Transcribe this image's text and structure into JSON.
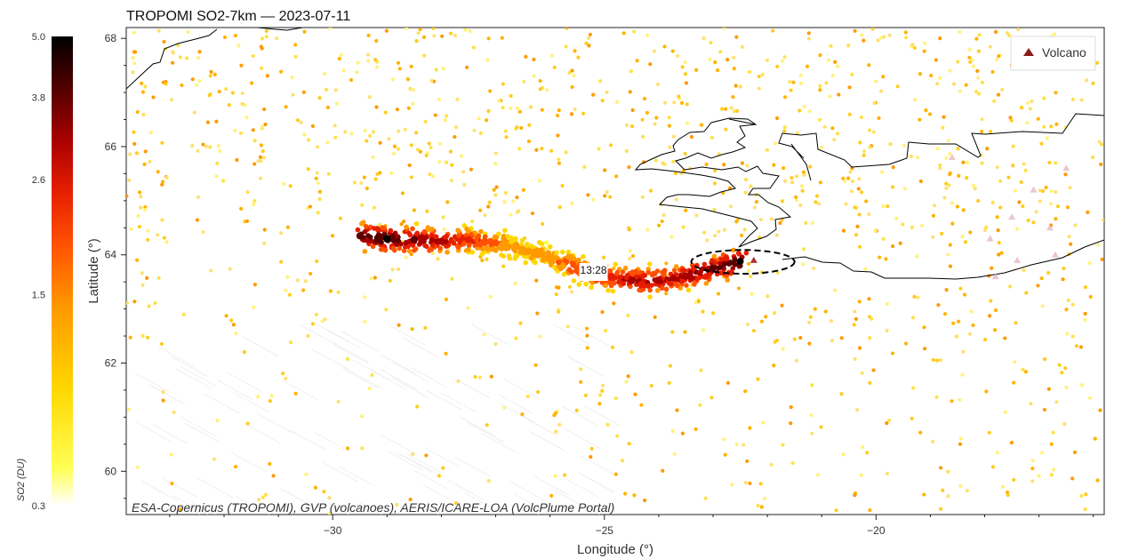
{
  "chart_data": {
    "type": "scatter",
    "title": "TROPOMI SO2-7km — 2023-07-11",
    "xlabel": "Longitude (°)",
    "ylabel": "Latitude (°)",
    "xlim": [
      -33.8,
      -15.8
    ],
    "ylim": [
      59.2,
      68.2
    ],
    "x_ticks": [
      -30,
      -25,
      -20
    ],
    "x_tick_labels": [
      "−30",
      "−25",
      "−20"
    ],
    "y_ticks": [
      60,
      62,
      64,
      66,
      68
    ],
    "y_tick_labels": [
      "60",
      "62",
      "64",
      "66",
      "68"
    ],
    "grid": false,
    "colorbar": {
      "label": "SO2 (DU)",
      "range": [
        0.3,
        5.0
      ],
      "ticks": [
        5.0,
        3.8,
        2.6,
        1.5,
        0.3
      ],
      "tick_labels": [
        "5.0",
        "3.8",
        "2.6",
        "1.5",
        "0.3"
      ],
      "colormap": [
        "#ffffff",
        "#ffff55",
        "#ffd700",
        "#ff9a00",
        "#ff5000",
        "#e61e00",
        "#a80000",
        "#5a0000",
        "#000000"
      ]
    },
    "legend": {
      "position": "top-right",
      "entries": [
        {
          "label": "Volcano",
          "marker": "triangle",
          "color": "#8b1a1a"
        }
      ]
    },
    "plume": [
      {
        "lon": -29.5,
        "lat": 64.35,
        "so2": 4.3
      },
      {
        "lon": -29.0,
        "lat": 64.3,
        "so2": 4.6
      },
      {
        "lon": -28.5,
        "lat": 64.28,
        "so2": 3.9
      },
      {
        "lon": -28.0,
        "lat": 64.25,
        "so2": 3.4
      },
      {
        "lon": -27.5,
        "lat": 64.28,
        "so2": 3.0
      },
      {
        "lon": -27.0,
        "lat": 64.22,
        "so2": 2.2
      },
      {
        "lon": -26.5,
        "lat": 64.1,
        "so2": 1.7
      },
      {
        "lon": -26.0,
        "lat": 63.95,
        "so2": 1.9
      },
      {
        "lon": -25.5,
        "lat": 63.75,
        "so2": 2.6
      },
      {
        "lon": -25.0,
        "lat": 63.6,
        "so2": 3.0
      },
      {
        "lon": -24.5,
        "lat": 63.52,
        "so2": 3.6
      },
      {
        "lon": -24.0,
        "lat": 63.52,
        "so2": 3.4
      },
      {
        "lon": -23.5,
        "lat": 63.6,
        "so2": 3.7
      },
      {
        "lon": -23.0,
        "lat": 63.75,
        "so2": 4.0
      },
      {
        "lon": -22.5,
        "lat": 63.88,
        "so2": 4.6
      }
    ],
    "volcanoes": [
      {
        "lon": -22.25,
        "lat": 63.9
      },
      {
        "lon": -18.6,
        "lat": 65.8
      },
      {
        "lon": -17.1,
        "lat": 65.2
      },
      {
        "lon": -16.8,
        "lat": 64.5
      },
      {
        "lon": -17.5,
        "lat": 64.7
      },
      {
        "lon": -17.9,
        "lat": 64.3
      },
      {
        "lon": -17.4,
        "lat": 63.9
      },
      {
        "lon": -17.8,
        "lat": 63.6
      },
      {
        "lon": -16.7,
        "lat": 64.0
      },
      {
        "lon": -16.5,
        "lat": 65.6
      }
    ],
    "focus_ellipse": {
      "lon": -22.45,
      "lat": 63.87,
      "rlon": 0.95,
      "rlat": 0.22
    },
    "time_label": {
      "lon": -25.2,
      "lat": 63.65,
      "text": "13:28"
    },
    "credit": "ESA-Copernicus (TROPOMI), GVP (volcanoes), AERIS/ICARE-LOA (VolcPlume Portal)"
  }
}
